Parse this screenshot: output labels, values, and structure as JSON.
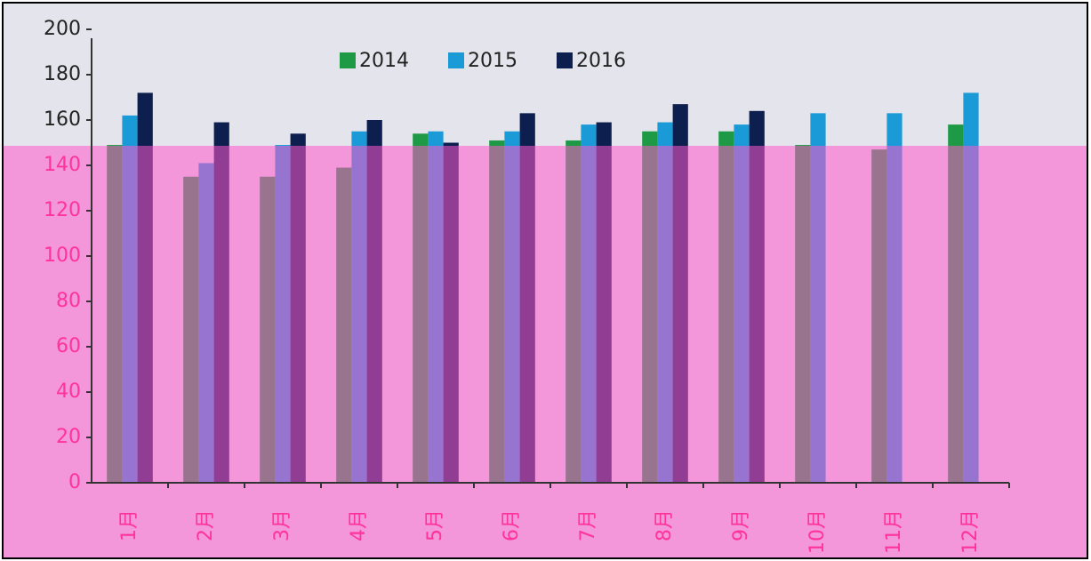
{
  "chart_data": {
    "type": "bar",
    "categories": [
      "1月",
      "2月",
      "3月",
      "4月",
      "5月",
      "6月",
      "7月",
      "8月",
      "9月",
      "10月",
      "11月",
      "12月"
    ],
    "series": [
      {
        "name": "2014",
        "color": "#1e9a46",
        "values": [
          149,
          135,
          135,
          139,
          154,
          151,
          151,
          155,
          155,
          149,
          147,
          158
        ]
      },
      {
        "name": "2015",
        "color": "#1a9ad6",
        "values": [
          162,
          141,
          149,
          155,
          155,
          155,
          158,
          159,
          158,
          163,
          163,
          172
        ]
      },
      {
        "name": "2016",
        "color": "#0d1f4f",
        "values": [
          172,
          159,
          154,
          160,
          150,
          163,
          159,
          167,
          164,
          null,
          null,
          null
        ]
      }
    ],
    "ylim": [
      0,
      200
    ],
    "yticks": [
      0,
      20,
      40,
      60,
      80,
      100,
      120,
      140,
      160,
      180,
      200
    ],
    "legend": "top"
  }
}
